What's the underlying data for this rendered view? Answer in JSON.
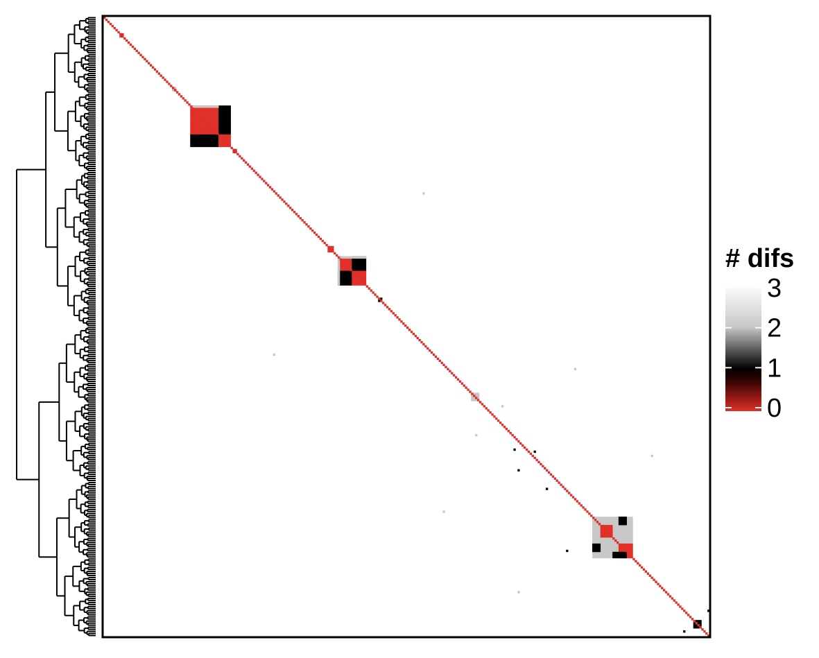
{
  "chart_data": {
    "type": "heatmap",
    "title": "",
    "xlabel": "",
    "ylabel": "",
    "n": 300,
    "row_dendrogram": true,
    "color_scale": {
      "title": "# difs",
      "min": 0,
      "max": 3,
      "ticks": [
        "3",
        "2",
        "1",
        "0"
      ],
      "tick_values": [
        3,
        2,
        1,
        0
      ],
      "colors": {
        "0": "#e0302a",
        "1": "#000000",
        "2": "#c8c8c8",
        "3": "#ffffff"
      }
    },
    "diagonal_value": 0,
    "blocks": [
      {
        "start": 8,
        "size": 2,
        "cells": [
          [
            1,
            0
          ],
          [
            0,
            1
          ]
        ],
        "symmetric": true
      },
      {
        "start": 34,
        "size": 2,
        "cells": [
          [
            1,
            2
          ],
          [
            2,
            1
          ]
        ],
        "symmetric": true
      },
      {
        "start": 43,
        "size": 20,
        "cells": [
          {
            "r": [
              0,
              14
            ],
            "c": [
              0,
              14
            ],
            "v": 0
          },
          {
            "r": [
              0,
              14
            ],
            "c": [
              14,
              20
            ],
            "v": 1
          },
          {
            "r": [
              14,
              20
            ],
            "c": [
              0,
              14
            ],
            "v": 1
          },
          {
            "r": [
              14,
              20
            ],
            "c": [
              14,
              20
            ],
            "v": 0
          },
          {
            "r": [
              0,
              1
            ],
            "c": [
              0,
              14
            ],
            "v": 2
          }
        ]
      },
      {
        "start": 64,
        "size": 2,
        "cells": [
          [
            1,
            0
          ],
          [
            0,
            1
          ]
        ],
        "symmetric": true
      },
      {
        "start": 111,
        "size": 3,
        "cells": [
          [
            0,
            0,
            0
          ],
          [
            0,
            0,
            0
          ],
          [
            0,
            0,
            0
          ]
        ]
      },
      {
        "start": 116,
        "size": 14,
        "cells": [
          {
            "r": [
              0,
              7
            ],
            "c": [
              0,
              7
            ],
            "v": 0
          },
          {
            "r": [
              0,
              7
            ],
            "c": [
              7,
              14
            ],
            "v": 1
          },
          {
            "r": [
              7,
              14
            ],
            "c": [
              0,
              7
            ],
            "v": 1
          },
          {
            "r": [
              7,
              14
            ],
            "c": [
              7,
              14
            ],
            "v": 0
          },
          {
            "r": [
              0,
              1
            ],
            "c": [
              0,
              14
            ],
            "v": 2
          },
          {
            "r": [
              0,
              14
            ],
            "c": [
              0,
              1
            ],
            "v": 2
          }
        ]
      },
      {
        "start": 136,
        "size": 2,
        "cells": [
          [
            0,
            1
          ],
          [
            1,
            0
          ]
        ]
      },
      {
        "start": 182,
        "size": 4,
        "cells": [
          [
            2,
            2,
            2,
            2
          ],
          [
            2,
            2,
            2,
            2
          ],
          [
            2,
            2,
            2,
            2
          ],
          [
            2,
            2,
            2,
            2
          ]
        ]
      },
      {
        "start": 242,
        "size": 20,
        "cells": [
          {
            "r": [
              0,
              20
            ],
            "c": [
              0,
              20
            ],
            "v": 2
          },
          {
            "r": [
              4,
              10
            ],
            "c": [
              4,
              10
            ],
            "v": 0
          },
          {
            "r": [
              13,
              20
            ],
            "c": [
              13,
              20
            ],
            "v": 0
          },
          {
            "r": [
              0,
              4
            ],
            "c": [
              13,
              17
            ],
            "v": 1
          },
          {
            "r": [
              13,
              17
            ],
            "c": [
              0,
              4
            ],
            "v": 1
          },
          {
            "r": [
              17,
              20
            ],
            "c": [
              10,
              17
            ],
            "v": 1
          }
        ]
      },
      {
        "start": 292,
        "size": 4,
        "cells": [
          [
            0,
            1,
            1,
            1
          ],
          [
            1,
            0,
            1,
            1
          ],
          [
            1,
            1,
            0,
            1
          ],
          [
            1,
            1,
            1,
            0
          ]
        ]
      }
    ],
    "scattered_cells": [
      {
        "row": 85,
        "col": 158,
        "v": 2
      },
      {
        "row": 163,
        "col": 84,
        "v": 2
      },
      {
        "row": 170,
        "col": 233,
        "v": 2
      },
      {
        "row": 188,
        "col": 197,
        "v": 2
      },
      {
        "row": 202,
        "col": 184,
        "v": 2
      },
      {
        "row": 209,
        "col": 203,
        "v": 1
      },
      {
        "row": 210,
        "col": 213,
        "v": 1
      },
      {
        "row": 212,
        "col": 271,
        "v": 2
      },
      {
        "row": 219,
        "col": 205,
        "v": 1
      },
      {
        "row": 228,
        "col": 219,
        "v": 1
      },
      {
        "row": 239,
        "col": 168,
        "v": 2
      },
      {
        "row": 258,
        "col": 229,
        "v": 1
      },
      {
        "row": 278,
        "col": 205,
        "v": 2
      },
      {
        "row": 287,
        "col": 299,
        "v": 1
      },
      {
        "row": 297,
        "col": 287,
        "v": 1
      }
    ]
  }
}
